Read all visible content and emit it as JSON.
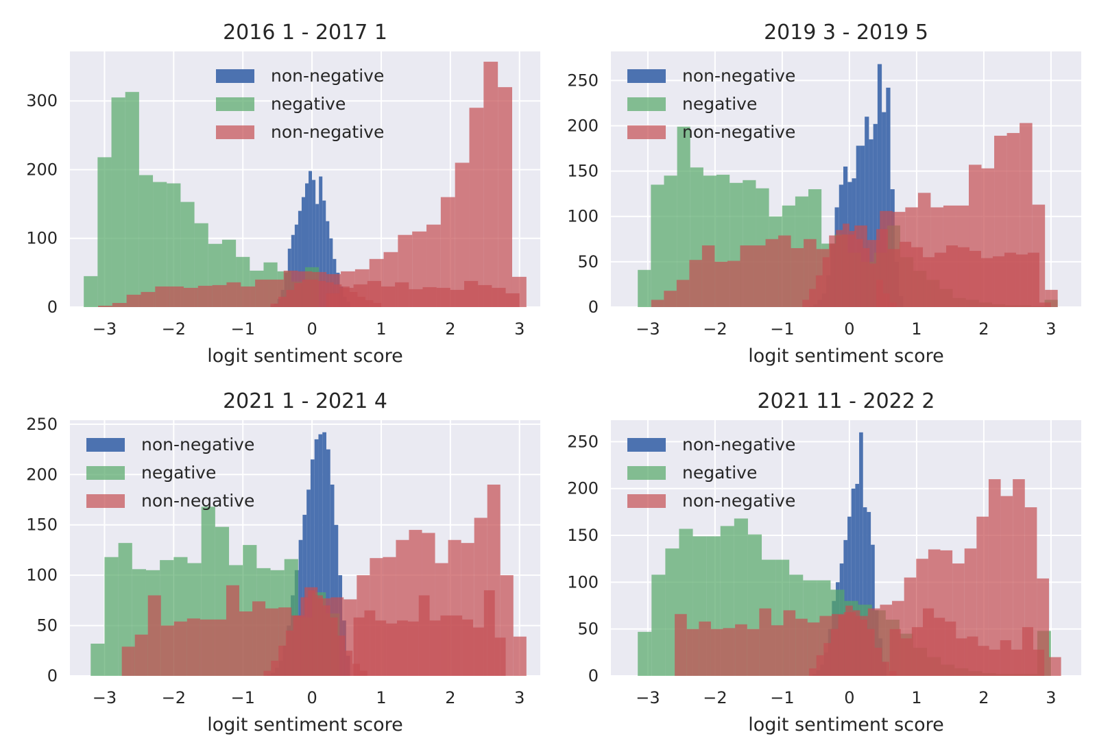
{
  "chart_data": [
    {
      "type": "bar",
      "title": "2016 1 - 2017 1",
      "xlabel": "logit sentiment score",
      "xlim": [
        -3.5,
        3.3
      ],
      "ylim": [
        0,
        372
      ],
      "xticks": [
        -3,
        -2,
        -1,
        0,
        1,
        2,
        3
      ],
      "xtick_labels": [
        "−3",
        "−2",
        "−1",
        "0",
        "1",
        "2",
        "3"
      ],
      "yticks": [
        0,
        100,
        200,
        300
      ],
      "legend_position": "top-center",
      "series": [
        {
          "name": "non-negative",
          "color": "#4c72b0",
          "bins": [
            -0.6,
            0.55
          ],
          "values": [
            2,
            5,
            12,
            25,
            50,
            85,
            105,
            120,
            140,
            160,
            180,
            198,
            185,
            150,
            190,
            155,
            125,
            100,
            70,
            50,
            30,
            15,
            8
          ]
        },
        {
          "name": "negative",
          "color": "#55a868",
          "bins": [
            -3.3,
            0.1
          ],
          "values": [
            45,
            218,
            305,
            313,
            192,
            182,
            180,
            153,
            122,
            92,
            98,
            73,
            53,
            65,
            52,
            37,
            58
          ]
        },
        {
          "name": "non-negative",
          "color": "#c44e52",
          "bins": [
            -3.3,
            3.1
          ],
          "values": [
            0,
            2,
            6,
            18,
            22,
            30,
            30,
            28,
            31,
            32,
            36,
            30,
            40,
            40,
            53,
            52,
            51,
            48,
            52,
            55,
            70,
            80,
            105,
            110,
            120,
            160,
            210,
            290,
            357,
            320,
            44
          ]
        },
        {
          "name": "",
          "color": "#c44e52",
          "bins": [
            -0.6,
            1.0
          ],
          "values": [
            5,
            15,
            25,
            35,
            40,
            40,
            38,
            36,
            33,
            30,
            22,
            15,
            10,
            6
          ]
        },
        {
          "name": "",
          "color": "#c44e52",
          "bins": [
            0.2,
            3.0
          ],
          "values": [
            20,
            28,
            33,
            38,
            30,
            36,
            26,
            29,
            28,
            25,
            38,
            32,
            28,
            20
          ]
        }
      ]
    },
    {
      "type": "bar",
      "title": "2019 3 - 2019 5",
      "xlabel": "logit sentiment score",
      "xlim": [
        -3.55,
        3.45
      ],
      "ylim": [
        0,
        282
      ],
      "xticks": [
        -3,
        -2,
        -1,
        0,
        1,
        2,
        3
      ],
      "xtick_labels": [
        "−3",
        "−2",
        "−1",
        "0",
        "1",
        "2",
        "3"
      ],
      "yticks": [
        0,
        50,
        100,
        150,
        200,
        250
      ],
      "legend_position": "top-left",
      "series": [
        {
          "name": "non-negative",
          "color": "#4c72b0",
          "bins": [
            -0.6,
            0.8
          ],
          "values": [
            1,
            3,
            8,
            15,
            35,
            70,
            110,
            135,
            155,
            138,
            142,
            178,
            178,
            210,
            185,
            202,
            268,
            215,
            242,
            130,
            50,
            12
          ]
        },
        {
          "name": "negative",
          "color": "#55a868",
          "bins": [
            -3.15,
            3.1
          ],
          "values": [
            41,
            135,
            145,
            199,
            154,
            145,
            146,
            137,
            140,
            131,
            100,
            112,
            122,
            130,
            70,
            80,
            60,
            50,
            60,
            90,
            55,
            40,
            30,
            20,
            10,
            8,
            5,
            3,
            2,
            2,
            1,
            8
          ]
        },
        {
          "name": "non-negative",
          "color": "#c44e52",
          "bins": [
            -2.95,
            3.1
          ],
          "values": [
            8,
            18,
            30,
            52,
            68,
            50,
            51,
            68,
            68,
            75,
            79,
            65,
            75,
            64,
            79,
            80,
            90,
            74,
            106,
            105,
            110,
            126,
            110,
            112,
            112,
            157,
            153,
            189,
            192,
            203,
            113,
            19
          ]
        },
        {
          "name": "",
          "color": "#c44e52",
          "bins": [
            -0.7,
            0.7
          ],
          "values": [
            8,
            20,
            35,
            55,
            70,
            85,
            92,
            84,
            75,
            65,
            48,
            30,
            15,
            5
          ]
        },
        {
          "name": "",
          "color": "#c44e52",
          "bins": [
            0.4,
            3.0
          ],
          "values": [
            86,
            64,
            72,
            66,
            55,
            60,
            68,
            66,
            62,
            54,
            56,
            60,
            58,
            60,
            5
          ]
        }
      ]
    },
    {
      "type": "bar",
      "title": "2021 1 - 2021 4",
      "xlabel": "logit sentiment score",
      "xlim": [
        -3.5,
        3.3
      ],
      "ylim": [
        0,
        254
      ],
      "xticks": [
        -3,
        -2,
        -1,
        0,
        1,
        2,
        3
      ],
      "xtick_labels": [
        "−3",
        "−2",
        "−1",
        "0",
        "1",
        "2",
        "3"
      ],
      "yticks": [
        0,
        50,
        100,
        150,
        200,
        250
      ],
      "legend_position": "top-left",
      "series": [
        {
          "name": "non-negative",
          "color": "#4c72b0",
          "bins": [
            -0.65,
            0.55
          ],
          "values": [
            1,
            3,
            8,
            15,
            30,
            50,
            80,
            105,
            135,
            160,
            185,
            215,
            235,
            240,
            242,
            225,
            190,
            150,
            100,
            55,
            20
          ]
        },
        {
          "name": "negative",
          "color": "#55a868",
          "bins": [
            -3.2,
            0.4
          ],
          "values": [
            32,
            118,
            132,
            106,
            105,
            115,
            118,
            112,
            168,
            148,
            110,
            130,
            107,
            105,
            116,
            58,
            83,
            62
          ]
        },
        {
          "name": "non-negative",
          "color": "#c44e52",
          "bins": [
            -2.75,
            3.1
          ],
          "values": [
            29,
            41,
            80,
            50,
            54,
            57,
            56,
            56,
            90,
            64,
            74,
            67,
            68,
            60,
            88,
            77,
            78,
            76,
            100,
            117,
            118,
            135,
            145,
            142,
            112,
            135,
            132,
            157,
            190,
            100,
            39
          ]
        },
        {
          "name": "",
          "color": "#c44e52",
          "bins": [
            -0.7,
            0.8
          ],
          "values": [
            5,
            15,
            30,
            45,
            60,
            78,
            85,
            80,
            70,
            58,
            40,
            25,
            12,
            5
          ]
        },
        {
          "name": "",
          "color": "#c44e52",
          "bins": [
            0.6,
            2.8
          ],
          "values": [
            58,
            65,
            55,
            52,
            55,
            54,
            80,
            55,
            60,
            60,
            56,
            48,
            85,
            38
          ]
        }
      ]
    },
    {
      "type": "bar",
      "title": "2021 11 - 2022 2",
      "xlabel": "logit sentiment score",
      "xlim": [
        -3.55,
        3.45
      ],
      "ylim": [
        0,
        273
      ],
      "xticks": [
        -3,
        -2,
        -1,
        0,
        1,
        2,
        3
      ],
      "xtick_labels": [
        "−3",
        "−2",
        "−1",
        "0",
        "1",
        "2",
        "3"
      ],
      "yticks": [
        0,
        50,
        100,
        150,
        200,
        250
      ],
      "legend_position": "top-left",
      "series": [
        {
          "name": "non-negative",
          "color": "#4c72b0",
          "bins": [
            -0.55,
            0.55
          ],
          "values": [
            2,
            6,
            12,
            25,
            50,
            80,
            100,
            120,
            145,
            170,
            200,
            205,
            260,
            180,
            175,
            140,
            70,
            40,
            15
          ]
        },
        {
          "name": "negative",
          "color": "#55a868",
          "bins": [
            -3.15,
            3.0
          ],
          "values": [
            47,
            108,
            136,
            157,
            149,
            149,
            160,
            168,
            151,
            124,
            124,
            108,
            102,
            102,
            92,
            80,
            76,
            70,
            60,
            45,
            30,
            20,
            12,
            8,
            5,
            3,
            2,
            2,
            2,
            48
          ]
        },
        {
          "name": "non-negative",
          "color": "#c44e52",
          "bins": [
            -2.6,
            3.15
          ],
          "values": [
            66,
            50,
            58,
            50,
            51,
            55,
            50,
            72,
            54,
            70,
            61,
            57,
            64,
            66,
            68,
            64,
            72,
            76,
            80,
            105,
            125,
            135,
            134,
            120,
            136,
            170,
            210,
            192,
            210,
            180,
            104,
            20
          ]
        },
        {
          "name": "",
          "color": "#c44e52",
          "bins": [
            -0.6,
            0.7
          ],
          "values": [
            8,
            22,
            35,
            50,
            65,
            75,
            70,
            60,
            50,
            30,
            15,
            5
          ]
        },
        {
          "name": "",
          "color": "#c44e52",
          "bins": [
            0.6,
            2.9
          ],
          "values": [
            50,
            40,
            52,
            72,
            62,
            58,
            40,
            42,
            32,
            28,
            38,
            28,
            52,
            28
          ]
        }
      ]
    }
  ]
}
